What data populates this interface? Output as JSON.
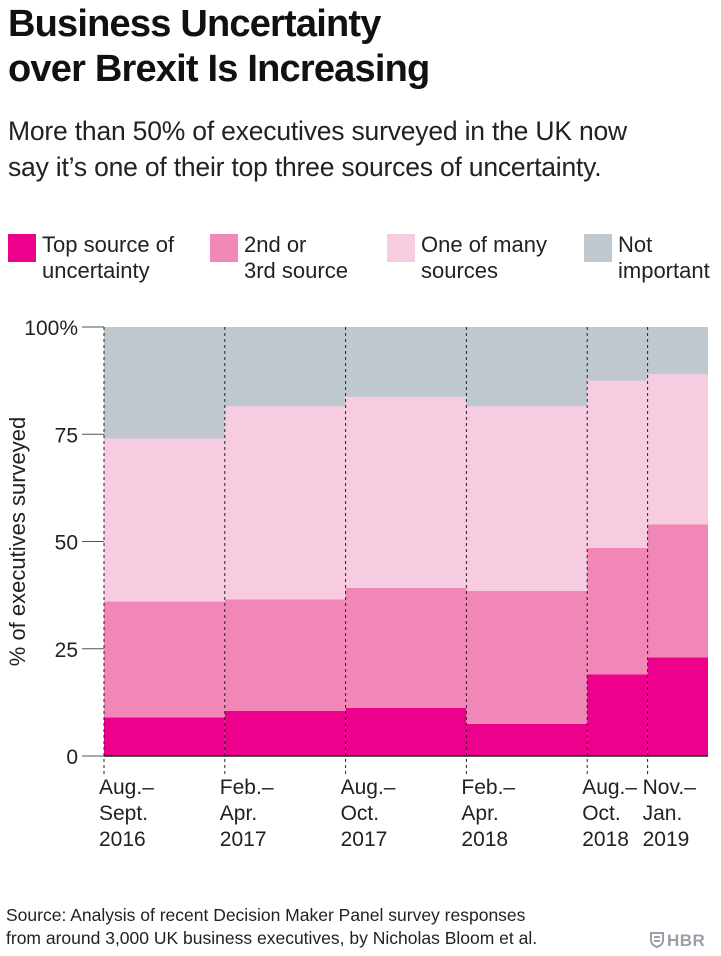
{
  "title_line1": "Business Uncertainty",
  "title_line2": "over Brexit Is Increasing",
  "subtitle_line1": "More than 50% of executives surveyed in the UK now",
  "subtitle_line2": "say it’s one of their top three sources of uncertainty.",
  "legend": [
    {
      "line1": "Top source of",
      "line2": "uncertainty",
      "color": "#ec008c"
    },
    {
      "line1": "2nd or",
      "line2": "3rd source",
      "color": "#f087b6"
    },
    {
      "line1": "One of many",
      "line2": "sources",
      "color": "#f7cce1"
    },
    {
      "line1": "Not",
      "line2": "important",
      "color": "#bfc8cf"
    }
  ],
  "source_line1": "Source: Analysis of recent Decision Maker Panel survey responses",
  "source_line2": "from around 3,000 UK business executives, by Nicholas Bloom et al.",
  "brand": "HBR",
  "chart_data": {
    "type": "bar",
    "stacked": true,
    "variable_width": true,
    "ylabel": "% of executives surveyed",
    "ylim": [
      0,
      100
    ],
    "yticks": [
      {
        "value": 0,
        "label": "0"
      },
      {
        "value": 25,
        "label": "25"
      },
      {
        "value": 50,
        "label": "50"
      },
      {
        "value": 75,
        "label": "75"
      },
      {
        "value": 100,
        "label": "100%"
      }
    ],
    "categories": [
      {
        "label": [
          "Aug.–",
          "Sept.",
          "2016"
        ],
        "relative_width": 2
      },
      {
        "label": [
          "Feb.–",
          "Apr.",
          "2017"
        ],
        "relative_width": 2
      },
      {
        "label": [
          "Aug.–",
          "Oct.",
          "2017"
        ],
        "relative_width": 2
      },
      {
        "label": [
          "Feb.–",
          "Apr.",
          "2018"
        ],
        "relative_width": 2
      },
      {
        "label": [
          "Aug.–",
          "Oct.",
          "2018"
        ],
        "relative_width": 1
      },
      {
        "label": [
          "Nov.–",
          "Jan.",
          "2019"
        ],
        "relative_width": 1
      }
    ],
    "series": [
      {
        "name": "Top source of uncertainty",
        "color": "#ec008c",
        "values": [
          9,
          10.5,
          11.2,
          7.5,
          19,
          23
        ]
      },
      {
        "name": "2nd or 3rd source",
        "color": "#f087b6",
        "values": [
          27,
          26,
          28,
          31,
          29.5,
          31
        ]
      },
      {
        "name": "One of many sources",
        "color": "#f7cce1",
        "values": [
          38,
          45,
          44.5,
          43,
          39,
          35
        ]
      },
      {
        "name": "Not important",
        "color": "#bfc8cf",
        "values": [
          26,
          18.5,
          16.3,
          18.5,
          12.5,
          11
        ]
      }
    ],
    "grid": false
  }
}
